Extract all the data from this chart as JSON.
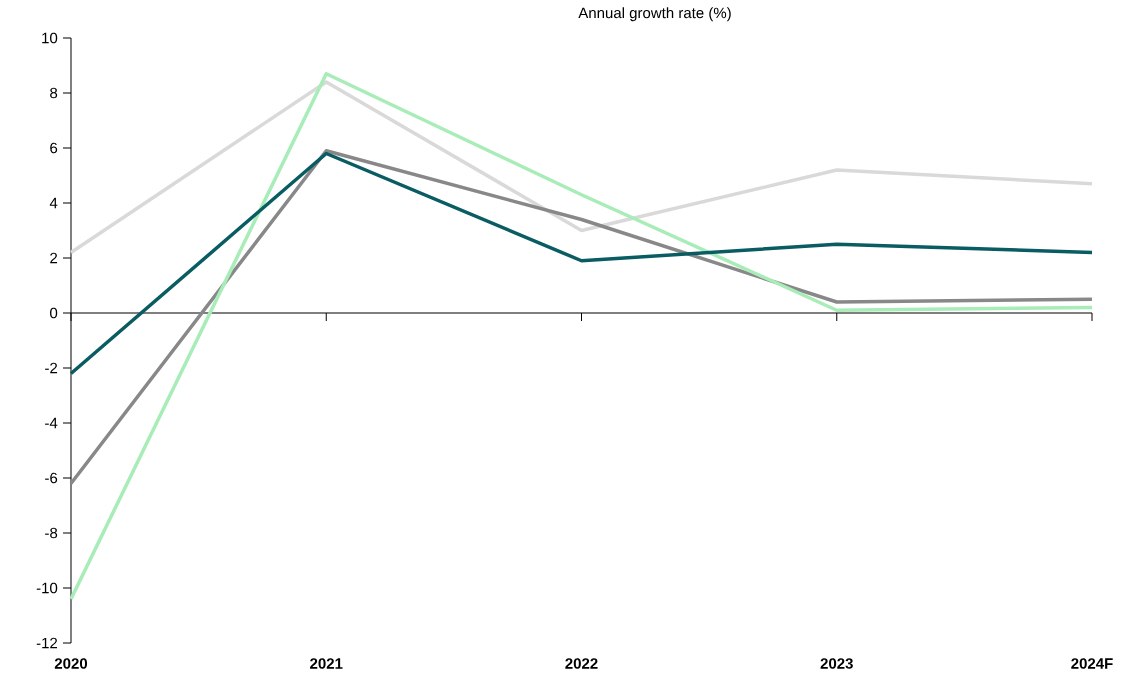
{
  "chart_data": {
    "type": "line",
    "title": "Annual growth rate (%)",
    "categories": [
      "2020",
      "2021",
      "2022",
      "2023",
      "2024F"
    ],
    "ylim": [
      -12,
      10
    ],
    "yticks": [
      -12,
      -10,
      -8,
      -6,
      -4,
      -2,
      0,
      2,
      4,
      6,
      8,
      10
    ],
    "series": [
      {
        "color": "#d9d9d9",
        "values": [
          2.2,
          8.4,
          3.0,
          5.2,
          4.7
        ]
      },
      {
        "color": "#888888",
        "values": [
          -6.2,
          5.9,
          3.4,
          0.4,
          0.5
        ]
      },
      {
        "color": "#a8ecb8",
        "values": [
          -10.4,
          8.7,
          4.3,
          0.1,
          0.2
        ]
      },
      {
        "color": "#0a5c63",
        "values": [
          -2.2,
          5.8,
          1.9,
          2.5,
          2.2
        ]
      }
    ]
  }
}
